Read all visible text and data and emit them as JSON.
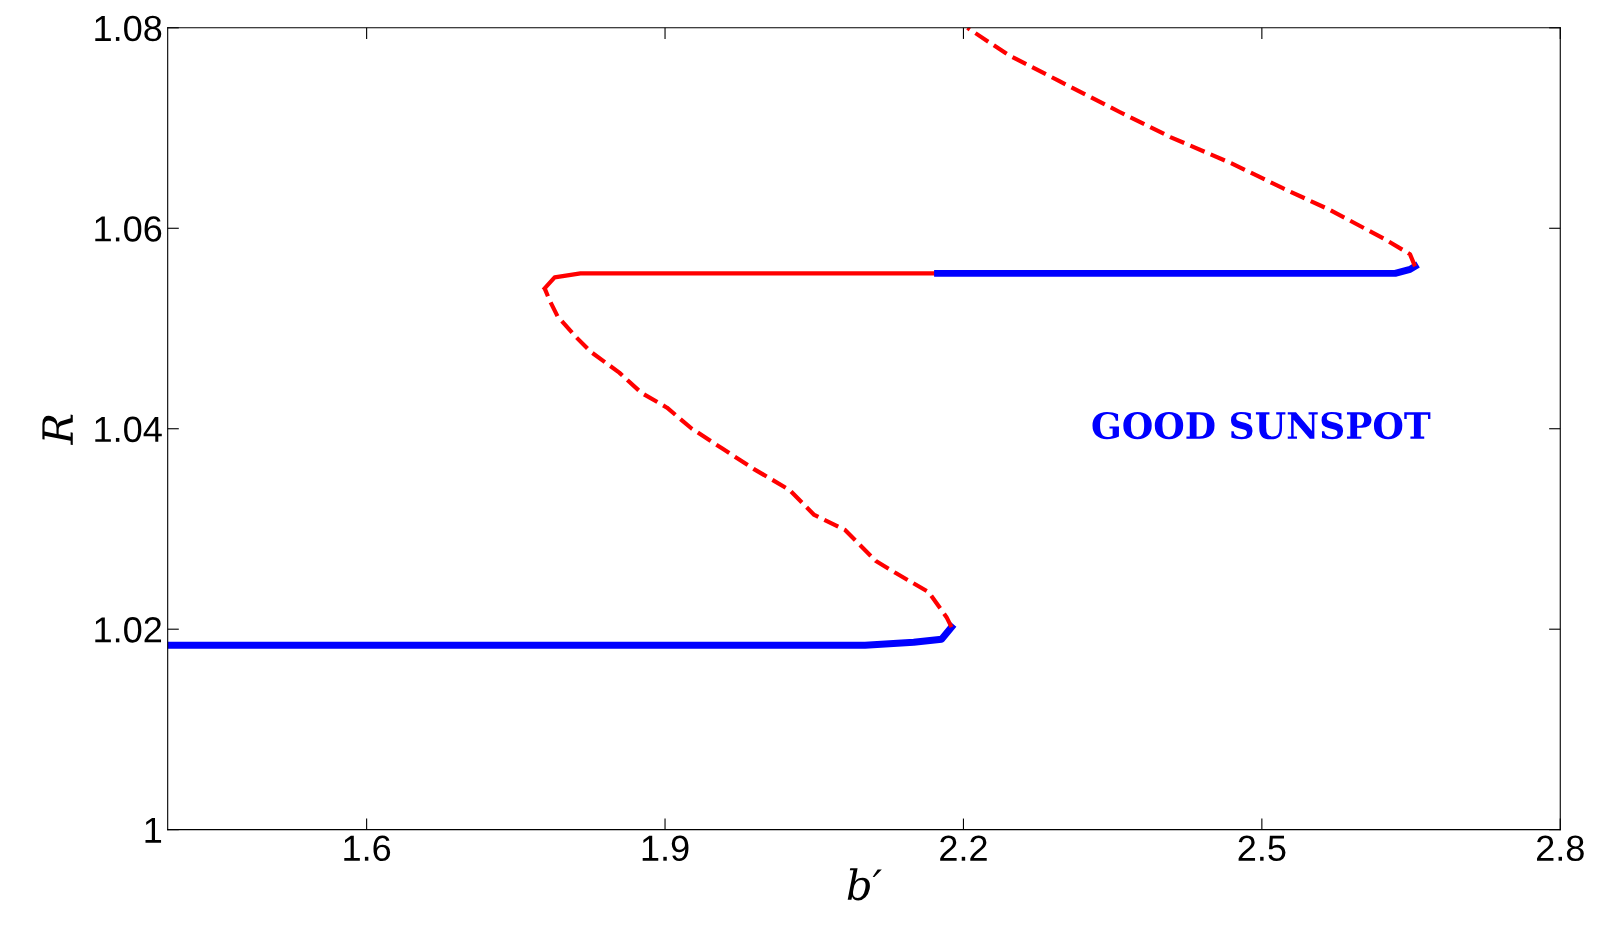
{
  "chart_data": {
    "type": "line",
    "xlabel": "b′",
    "ylabel": "R",
    "xlim": [
      1.4,
      2.8
    ],
    "ylim": [
      1,
      1.08
    ],
    "xticks": [
      1.6,
      1.9,
      2.2,
      2.5,
      2.8
    ],
    "yticks": [
      1,
      1.02,
      1.04,
      1.06,
      1.08
    ],
    "grid": false,
    "marker": "none",
    "annotations": [
      "GOOD SUNSPOT"
    ],
    "series": [
      {
        "color": "#0000ff",
        "line_style": "solid",
        "x": [
          1.4,
          1.8,
          2.101,
          2.15,
          2.178,
          2.188
        ],
        "values": [
          1.0184,
          1.0184,
          1.0184,
          1.0187,
          1.019,
          1.0202
        ]
      },
      {
        "color": "#ff0000",
        "line_style": "dashed",
        "x": [
          2.188,
          2.183,
          2.165,
          2.132,
          2.112,
          2.081,
          2.05,
          2.025,
          1.989,
          1.958,
          1.927,
          1.902,
          1.876,
          1.854,
          1.825,
          1.81,
          1.792,
          1.784,
          1.779
        ],
        "values": [
          1.0202,
          1.0212,
          1.0237,
          1.0256,
          1.0268,
          1.0299,
          1.0314,
          1.0339,
          1.036,
          1.038,
          1.04,
          1.0421,
          1.0436,
          1.0456,
          1.0477,
          1.0492,
          1.0512,
          1.0528,
          1.054
        ]
      },
      {
        "color": "#ff0000",
        "line_style": "solid",
        "x": [
          1.779,
          1.789,
          1.815,
          2.174
        ],
        "values": [
          1.054,
          1.0551,
          1.0555,
          1.0555
        ]
      },
      {
        "color": "#0000ff",
        "line_style": "solid",
        "x": [
          2.174,
          2.634,
          2.649,
          2.654
        ],
        "values": [
          1.0555,
          1.0555,
          1.0559,
          1.0562
        ]
      },
      {
        "color": "#ff0000",
        "line_style": "dashed",
        "x": [
          2.654,
          2.649,
          2.624,
          2.567,
          2.521,
          2.469,
          2.408,
          2.357,
          2.296,
          2.245,
          2.204
        ],
        "values": [
          1.0562,
          1.0574,
          1.0589,
          1.0619,
          1.064,
          1.0665,
          1.0691,
          1.0716,
          1.0747,
          1.0773,
          1.08
        ]
      }
    ]
  }
}
